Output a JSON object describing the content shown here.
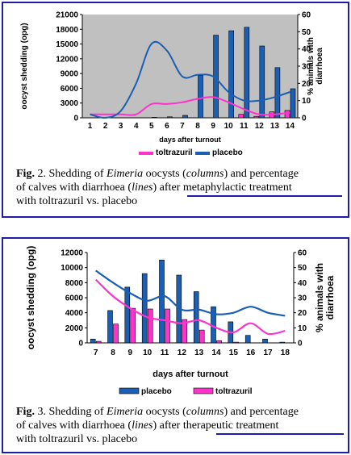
{
  "figure2": {
    "caption": {
      "label": "Fig.",
      "number": "2.",
      "line1_pre": "Shedding of",
      "italic1": "Eimeria",
      "line1_mid": "oocysts (",
      "italic2": "columns",
      "line1_end": ") and percentage",
      "line2_pre": "of calves with diarrhoea (",
      "italic3": "lines",
      "line2_mid": ") after",
      "line2_end": "metaphylactic treatment",
      "line3": "with toltrazuril vs. placebo"
    },
    "chart_data": {
      "type": "bar",
      "categories": [
        "1",
        "2",
        "3",
        "4",
        "5",
        "6",
        "7",
        "8",
        "9",
        "10",
        "11",
        "12",
        "13",
        "14"
      ],
      "xlabel": "days after turnout",
      "ylabel_left": "oocyst shedding (opg)",
      "ylabel_right": "% animals with diarrhoea",
      "yleft_ticks": [
        "0",
        "3000",
        "6000",
        "9000",
        "12000",
        "15000",
        "18000",
        "21000"
      ],
      "yright_ticks": [
        "0",
        "10",
        "20",
        "30",
        "40",
        "50",
        "60"
      ],
      "ylim_left": [
        0,
        21000
      ],
      "ylim_right": [
        0,
        60
      ],
      "grid": false,
      "legend_placement": "bottom",
      "plot_background": "#c0c0c0",
      "series": [
        {
          "name": "toltrazuril",
          "kind": "bars",
          "axis": "left",
          "color": "#ff33cc",
          "values": [
            0,
            0,
            0,
            0,
            0,
            0,
            0,
            0,
            0,
            0,
            700,
            300,
            1200,
            1500
          ]
        },
        {
          "name": "placebo",
          "kind": "bars",
          "axis": "left",
          "color": "#1a5fb4",
          "values": [
            0,
            0,
            0,
            0,
            100,
            200,
            500,
            8600,
            16800,
            17700,
            18400,
            14600,
            10200,
            5900
          ]
        },
        {
          "name": "toltrazuril",
          "kind": "line",
          "axis": "right",
          "color": "#ff33cc",
          "values": [
            2,
            2,
            2,
            2,
            8,
            8,
            9,
            11,
            12,
            9,
            5,
            2,
            2,
            3
          ]
        },
        {
          "name": "placebo",
          "kind": "line",
          "axis": "right",
          "color": "#1a5fb4",
          "values": [
            2,
            0,
            4,
            20,
            43,
            39,
            24,
            25,
            24,
            15,
            10,
            10,
            12,
            15
          ]
        }
      ]
    }
  },
  "figure3": {
    "caption": {
      "label": "Fig.",
      "number": "3.",
      "line1_pre": "Shedding of",
      "italic1": "Eimeria",
      "line1_mid": "oocysts (",
      "italic2": "columns",
      "line1_end": ") and percentage",
      "line2_pre": "of calves with diarrhoea (",
      "italic3": "lines",
      "line2_mid": ") after",
      "line2_end": "therapeutic treatment",
      "line3": "with toltrazuril vs. placebo"
    },
    "chart_data": {
      "type": "bar",
      "categories": [
        "7",
        "8",
        "9",
        "10",
        "11",
        "12",
        "13",
        "14",
        "15",
        "16",
        "17",
        "18"
      ],
      "xlabel": "days after turnout",
      "ylabel_left": "oocyst shedding (opg)",
      "ylabel_right": "% animals with diarrhoea",
      "yleft_ticks": [
        "0",
        "2000",
        "4000",
        "6000",
        "8000",
        "10000",
        "12000"
      ],
      "yright_ticks": [
        "0",
        "10",
        "20",
        "30",
        "40",
        "50",
        "60"
      ],
      "ylim_left": [
        0,
        12000
      ],
      "ylim_right": [
        0,
        60
      ],
      "grid": false,
      "legend_placement": "bottom",
      "plot_background": "#ffffff",
      "series": [
        {
          "name": "placebo",
          "kind": "bars",
          "axis": "left",
          "color": "#1a5fb4",
          "values": [
            500,
            4300,
            7400,
            9200,
            11000,
            9000,
            6800,
            4800,
            2800,
            1000,
            500,
            100
          ]
        },
        {
          "name": "toltrazuril",
          "kind": "bars",
          "axis": "left",
          "color": "#ff33cc",
          "values": [
            200,
            2500,
            4600,
            4500,
            4500,
            3100,
            1700,
            300,
            100,
            0,
            0,
            0
          ]
        },
        {
          "name": "placebo",
          "kind": "line",
          "axis": "right",
          "color": "#1a5fb4",
          "values": [
            48,
            40,
            33,
            28,
            31,
            22,
            22,
            19,
            20,
            24,
            20,
            18
          ]
        },
        {
          "name": "toltrazuril",
          "kind": "line",
          "axis": "right",
          "color": "#ff33cc",
          "values": [
            42,
            31,
            23,
            17,
            15,
            13,
            15,
            10,
            7,
            13,
            6,
            8
          ]
        }
      ]
    }
  }
}
